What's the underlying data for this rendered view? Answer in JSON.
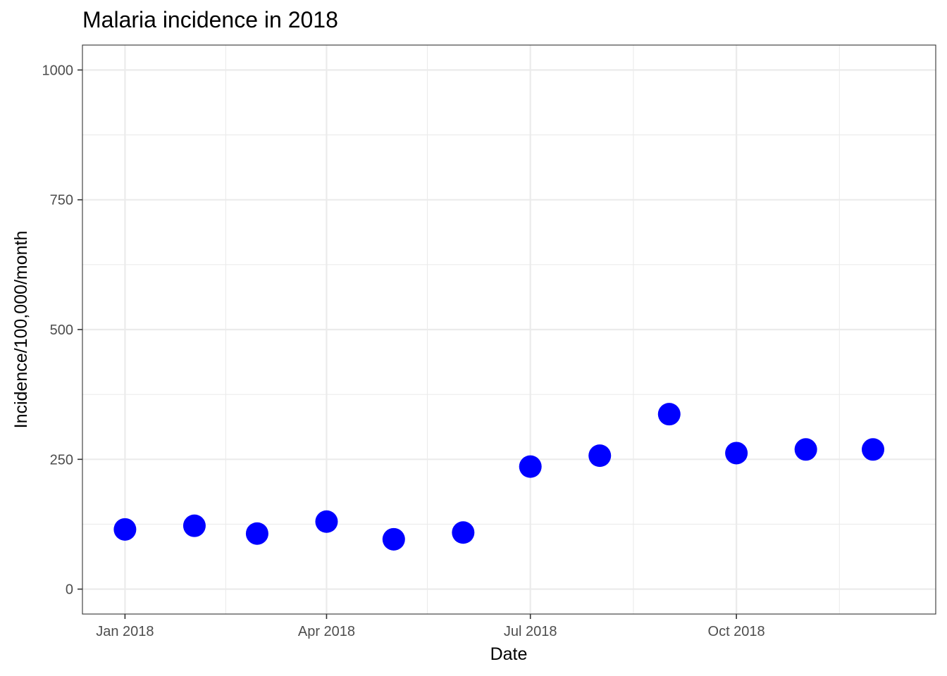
{
  "chart_data": {
    "type": "scatter",
    "title": "Malaria incidence in 2018",
    "xlabel": "Date",
    "ylabel": "Incidence/100,000/month",
    "ylim": [
      -48,
      1048
    ],
    "xlim": [
      "2017-12-13",
      "2018-12-29"
    ],
    "y_ticks": [
      0,
      250,
      500,
      750,
      1000
    ],
    "x_ticks": [
      {
        "date": "2018-01-01",
        "label": "Jan 2018"
      },
      {
        "date": "2018-04-01",
        "label": "Apr 2018"
      },
      {
        "date": "2018-07-01",
        "label": "Jul 2018"
      },
      {
        "date": "2018-10-01",
        "label": "Oct 2018"
      }
    ],
    "x_minor_ticks": [
      "2018-02-15",
      "2018-05-16",
      "2018-08-16",
      "2018-11-16"
    ],
    "points": [
      {
        "x": "2018-01-01",
        "y": 115
      },
      {
        "x": "2018-02-01",
        "y": 122
      },
      {
        "x": "2018-03-01",
        "y": 107
      },
      {
        "x": "2018-04-01",
        "y": 130
      },
      {
        "x": "2018-05-01",
        "y": 96
      },
      {
        "x": "2018-06-01",
        "y": 109
      },
      {
        "x": "2018-07-01",
        "y": 236
      },
      {
        "x": "2018-08-01",
        "y": 257
      },
      {
        "x": "2018-09-01",
        "y": 337
      },
      {
        "x": "2018-10-01",
        "y": 262
      },
      {
        "x": "2018-11-01",
        "y": 269
      },
      {
        "x": "2018-12-01",
        "y": 269
      }
    ],
    "point_color": "#0000ff",
    "grid": true,
    "legend": "none"
  }
}
